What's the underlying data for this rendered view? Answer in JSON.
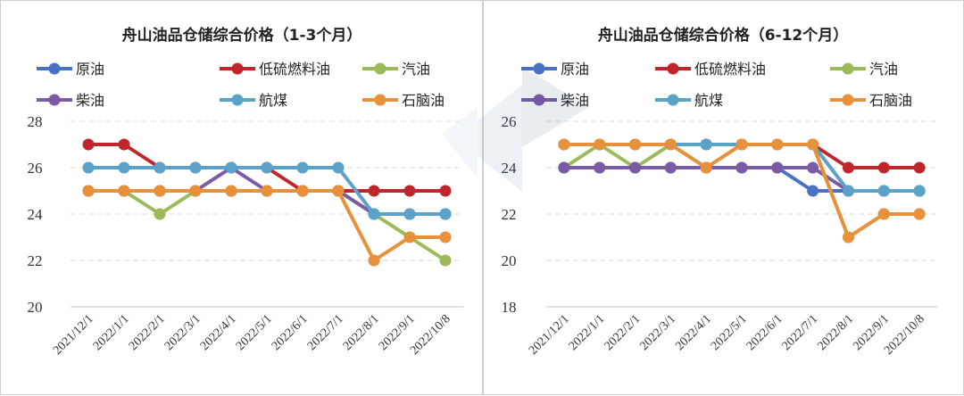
{
  "chart_data": [
    {
      "type": "line",
      "title": "舟山油品仓储综合价格（1-3个月）",
      "categories": [
        "2021/12/1",
        "2022/1/1",
        "2022/2/1",
        "2022/3/1",
        "2022/4/1",
        "2022/5/1",
        "2022/6/1",
        "2022/7/1",
        "2022/8/1",
        "2022/9/1",
        "2022/10/8"
      ],
      "ylim": [
        20,
        28
      ],
      "yticks": [
        20,
        22,
        24,
        26,
        28
      ],
      "grid": true,
      "legend": "top",
      "series": [
        {
          "name": "原油",
          "color": "#4a72c4",
          "values": [
            25,
            25,
            25,
            25,
            25,
            25,
            25,
            25,
            24,
            24,
            24
          ]
        },
        {
          "name": "低硫燃料油",
          "color": "#c0272d",
          "values": [
            27,
            27,
            26,
            26,
            26,
            26,
            25,
            25,
            25,
            25,
            25
          ]
        },
        {
          "name": "汽油",
          "color": "#9bbb59",
          "values": [
            25,
            25,
            24,
            25,
            25,
            25,
            25,
            25,
            24,
            23,
            22
          ]
        },
        {
          "name": "柴油",
          "color": "#7b5ba6",
          "values": [
            25,
            25,
            25,
            25,
            26,
            25,
            25,
            25,
            24,
            24,
            24
          ]
        },
        {
          "name": "航煤",
          "color": "#5aa2c8",
          "values": [
            26,
            26,
            26,
            26,
            26,
            26,
            26,
            26,
            24,
            24,
            24
          ]
        },
        {
          "name": "石脑油",
          "color": "#e8913a",
          "values": [
            25,
            25,
            25,
            25,
            25,
            25,
            25,
            25,
            22,
            23,
            23
          ]
        }
      ]
    },
    {
      "type": "line",
      "title": "舟山油品仓储综合价格（6-12个月）",
      "categories": [
        "2021/12/1",
        "2022/1/1",
        "2022/2/1",
        "2022/3/1",
        "2022/4/1",
        "2022/5/1",
        "2022/6/1",
        "2022/7/1",
        "2022/8/1",
        "2022/9/1",
        "2022/10/8"
      ],
      "ylim": [
        18,
        26
      ],
      "yticks": [
        18,
        20,
        22,
        24,
        26
      ],
      "grid": true,
      "legend": "top",
      "series": [
        {
          "name": "原油",
          "color": "#4a72c4",
          "values": [
            24,
            24,
            24,
            24,
            24,
            24,
            24,
            23,
            23,
            23,
            23
          ]
        },
        {
          "name": "低硫燃料油",
          "color": "#c0272d",
          "values": [
            25,
            25,
            25,
            25,
            25,
            25,
            25,
            25,
            24,
            24,
            24
          ]
        },
        {
          "name": "汽油",
          "color": "#9bbb59",
          "values": [
            24,
            25,
            24,
            25,
            24,
            25,
            25,
            25,
            21,
            22,
            22
          ]
        },
        {
          "name": "柴油",
          "color": "#7b5ba6",
          "values": [
            24,
            24,
            24,
            24,
            24,
            24,
            24,
            24,
            23,
            23,
            23
          ]
        },
        {
          "name": "航煤",
          "color": "#5aa2c8",
          "values": [
            25,
            25,
            25,
            25,
            25,
            25,
            25,
            25,
            23,
            23,
            23
          ]
        },
        {
          "name": "石脑油",
          "color": "#e8913a",
          "values": [
            25,
            25,
            25,
            25,
            24,
            25,
            25,
            25,
            21,
            22,
            22
          ]
        }
      ]
    }
  ]
}
